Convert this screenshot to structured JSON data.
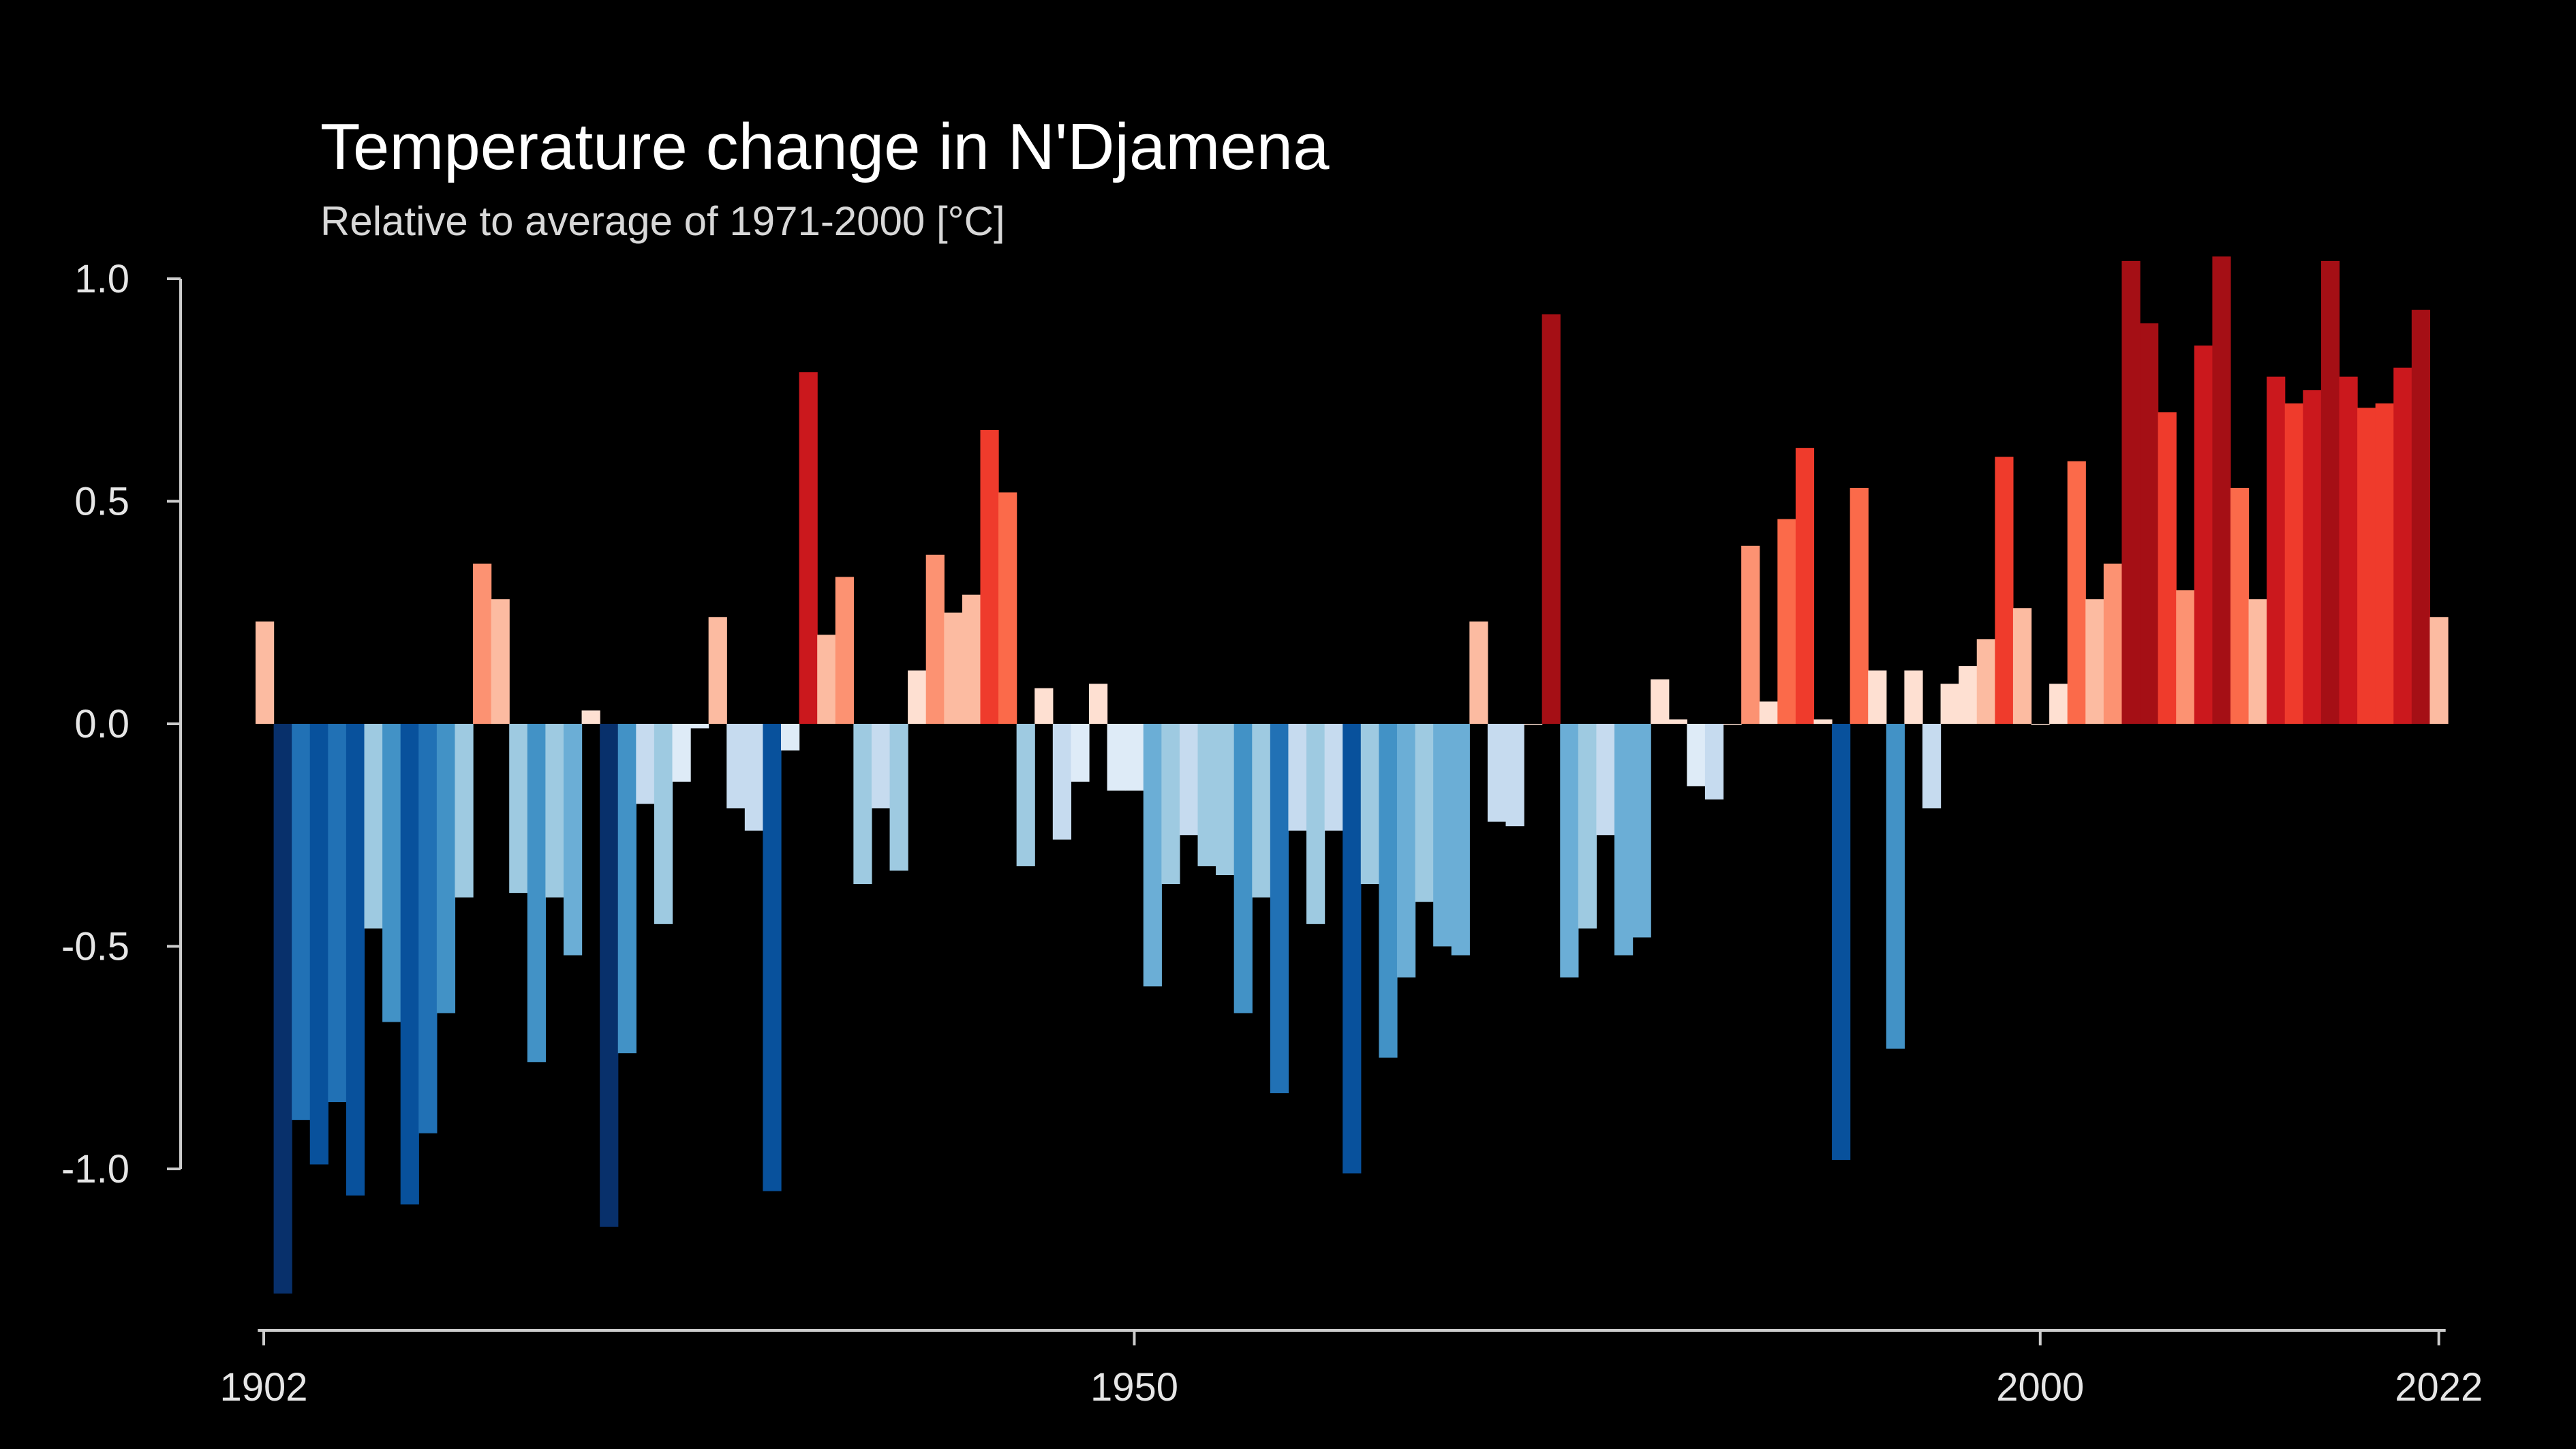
{
  "chart_data": {
    "type": "bar",
    "title": "Temperature change in N'Djamena",
    "subtitle": "Relative to average of 1971-2000  [°C]",
    "xlabel": "",
    "ylabel": "",
    "x_start": 1902,
    "x_end": 2022,
    "xlim": [
      1902,
      2022
    ],
    "ylim": [
      -1.3,
      1.1
    ],
    "grid": false,
    "legend": "none",
    "x_ticks": [
      1902,
      1950,
      2000,
      2022
    ],
    "x_tick_labels": [
      "1902",
      "1950",
      "2000",
      "2022"
    ],
    "y_ticks": [
      1.0,
      0.5,
      0.0,
      -0.5,
      -1.0
    ],
    "y_tick_labels": [
      "1.0",
      "0.5",
      "0.0",
      "-0.5",
      "-1.0"
    ],
    "color_scale": {
      "negative": [
        "#deebf7",
        "#c6dbef",
        "#9ecae1",
        "#6baed6",
        "#4292c6",
        "#2171b5",
        "#08519c",
        "#08306b"
      ],
      "positive": [
        "#fee0d2",
        "#fcbba1",
        "#fc9272",
        "#fb6a4a",
        "#ef3b2c",
        "#cb181d",
        "#a50f15"
      ]
    },
    "colors": {
      "background": "#000000",
      "axis": "#cccccc",
      "text": "#ffffff"
    },
    "years": [
      1902,
      1903,
      1904,
      1905,
      1906,
      1907,
      1908,
      1909,
      1910,
      1911,
      1912,
      1913,
      1914,
      1915,
      1916,
      1917,
      1918,
      1919,
      1920,
      1921,
      1922,
      1923,
      1924,
      1925,
      1926,
      1927,
      1928,
      1929,
      1930,
      1931,
      1932,
      1933,
      1934,
      1935,
      1936,
      1937,
      1938,
      1939,
      1940,
      1941,
      1942,
      1943,
      1944,
      1945,
      1946,
      1947,
      1948,
      1949,
      1950,
      1951,
      1952,
      1953,
      1954,
      1955,
      1956,
      1957,
      1958,
      1959,
      1960,
      1961,
      1962,
      1963,
      1964,
      1965,
      1966,
      1967,
      1968,
      1969,
      1970,
      1971,
      1972,
      1973,
      1974,
      1975,
      1976,
      1977,
      1978,
      1979,
      1980,
      1981,
      1982,
      1983,
      1984,
      1985,
      1986,
      1987,
      1988,
      1989,
      1990,
      1991,
      1992,
      1993,
      1994,
      1995,
      1996,
      1997,
      1998,
      1999,
      2000,
      2001,
      2002,
      2003,
      2004,
      2005,
      2006,
      2007,
      2008,
      2009,
      2010,
      2011,
      2012,
      2013,
      2014,
      2015,
      2016,
      2017,
      2018,
      2019,
      2020,
      2021,
      2022
    ],
    "values": [
      0.23,
      -1.28,
      -0.89,
      -0.99,
      -0.85,
      -1.06,
      -0.46,
      -0.67,
      -1.08,
      -0.92,
      -0.65,
      -0.39,
      0.36,
      0.28,
      -0.38,
      -0.76,
      -0.39,
      -0.52,
      0.03,
      -1.13,
      -0.74,
      -0.18,
      -0.45,
      -0.13,
      -0.01,
      0.24,
      -0.19,
      -0.24,
      -1.05,
      -0.06,
      0.79,
      0.2,
      0.33,
      -0.36,
      -0.19,
      -0.33,
      0.12,
      0.38,
      0.25,
      0.29,
      0.66,
      0.52,
      -0.32,
      0.08,
      -0.26,
      -0.13,
      0.09,
      -0.15,
      -0.15,
      -0.59,
      -0.36,
      -0.25,
      -0.32,
      -0.34,
      -0.65,
      -0.39,
      -0.83,
      -0.24,
      -0.45,
      -0.24,
      -1.01,
      -0.36,
      -0.75,
      -0.57,
      -0.4,
      -0.5,
      -0.52,
      0.23,
      -0.22,
      -0.23,
      0.0,
      0.92,
      -0.57,
      -0.46,
      -0.25,
      -0.52,
      -0.48,
      0.1,
      0.01,
      -0.14,
      -0.17,
      0.0,
      0.4,
      0.05,
      0.46,
      0.62,
      0.01,
      -0.98,
      0.53,
      0.12,
      -0.73,
      0.12,
      -0.19,
      0.09,
      0.13,
      0.19,
      0.6,
      0.26,
      0.0,
      0.09,
      0.59,
      0.28,
      0.36,
      1.04,
      0.9,
      0.7,
      0.3,
      0.85,
      1.05,
      0.53,
      0.28,
      0.78,
      0.72,
      0.75,
      1.04,
      0.78,
      0.71,
      0.72,
      0.8,
      0.93,
      0.24
    ]
  }
}
